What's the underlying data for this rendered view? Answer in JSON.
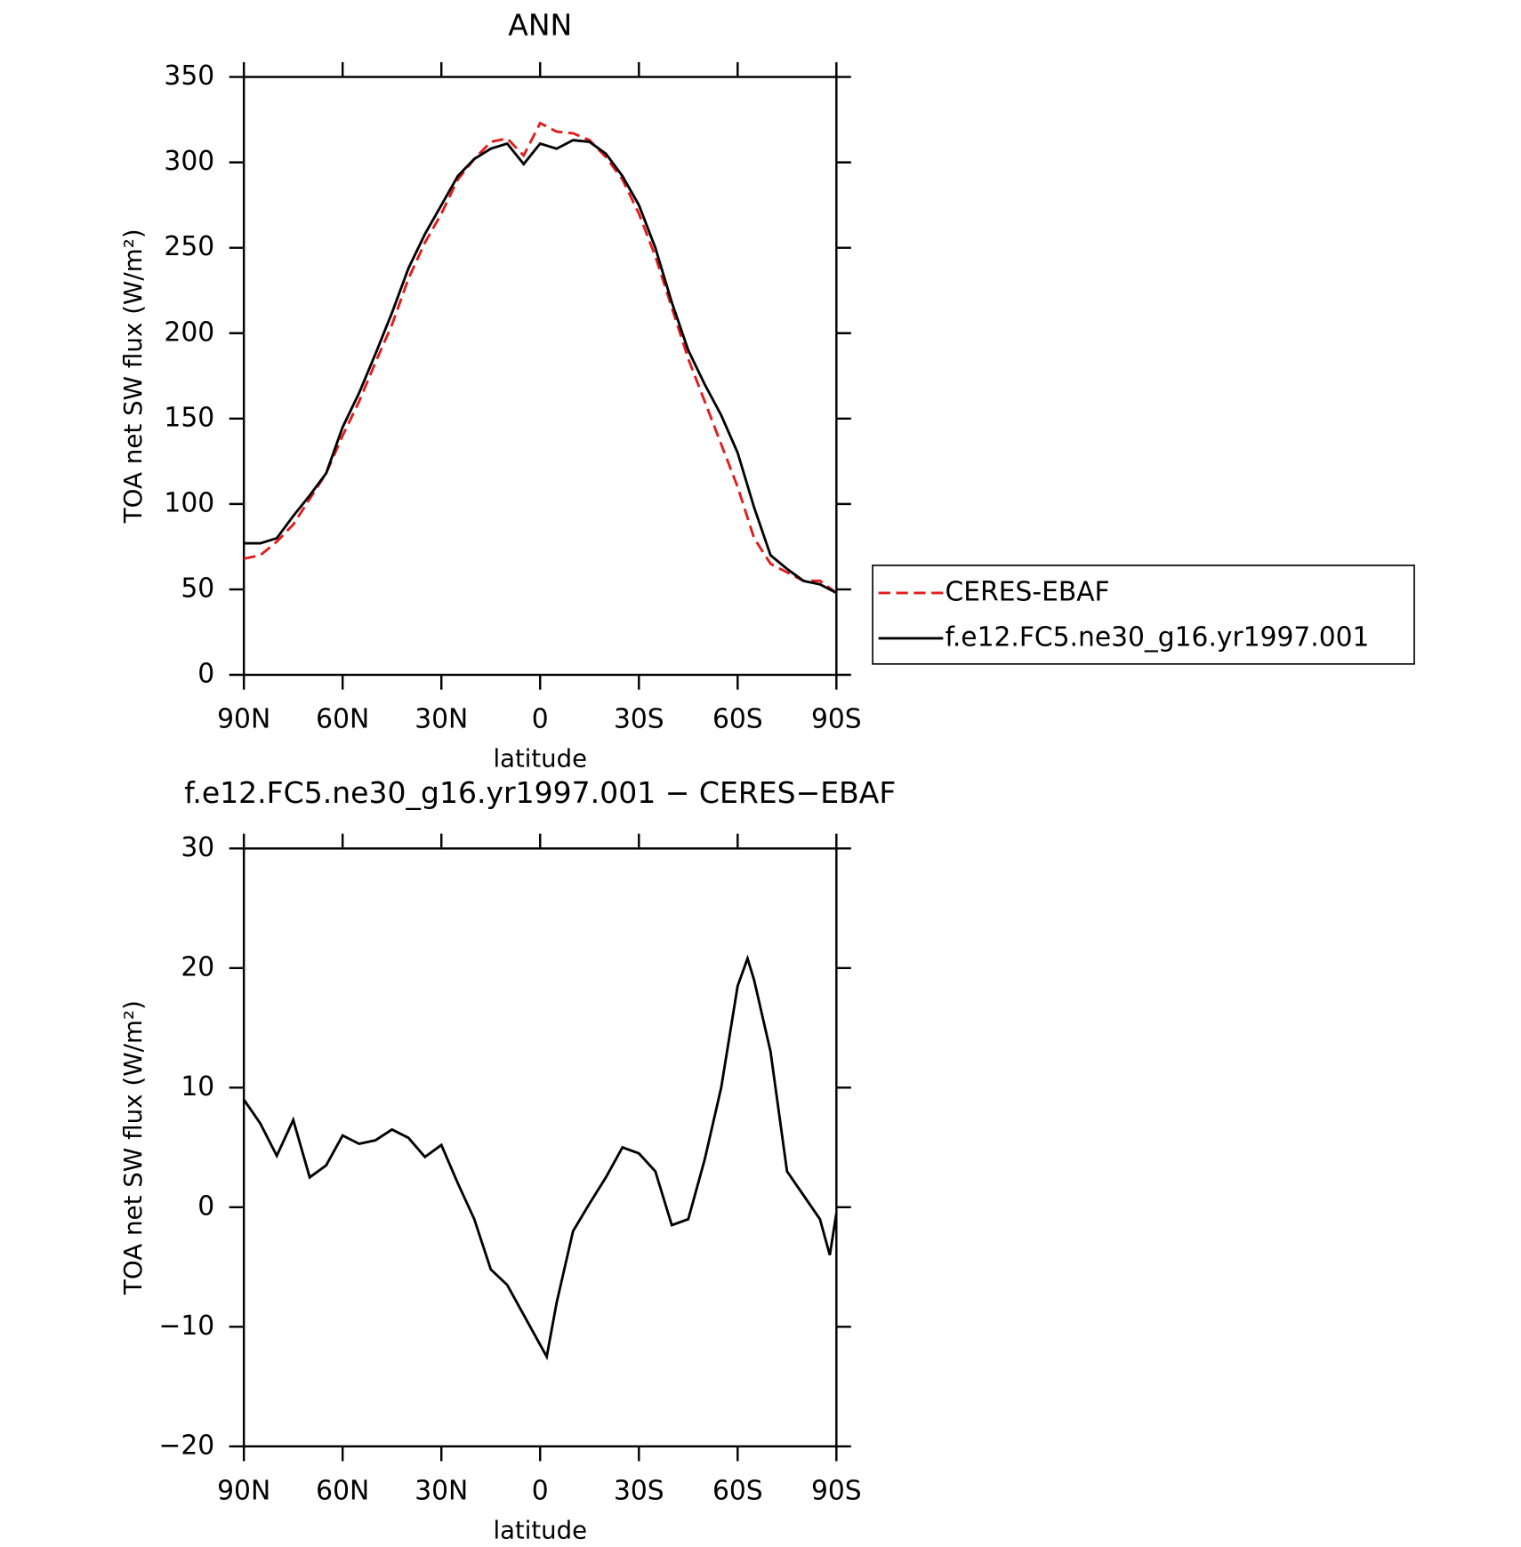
{
  "chart_data": [
    {
      "type": "line",
      "title": "ANN",
      "x_label": "latitude",
      "y_label": "TOA net SW flux (W/m²)",
      "x": [
        90,
        85,
        80,
        75,
        70,
        65,
        60,
        55,
        50,
        45,
        40,
        35,
        30,
        25,
        20,
        15,
        10,
        5,
        0,
        -5,
        -10,
        -15,
        -20,
        -25,
        -30,
        -35,
        -40,
        -45,
        -50,
        -55,
        -60,
        -65,
        -70,
        -75,
        -80,
        -85,
        -90
      ],
      "xlim": [
        90,
        -90
      ],
      "xticks": [
        {
          "value": 90,
          "label": "90N"
        },
        {
          "value": 60,
          "label": "60N"
        },
        {
          "value": 30,
          "label": "30N"
        },
        0,
        {
          "value": -30,
          "label": "30S"
        },
        {
          "value": -60,
          "label": "60S"
        },
        {
          "value": -90,
          "label": "90S"
        }
      ],
      "ylim": [
        0,
        350
      ],
      "yticks": [
        0,
        50,
        100,
        150,
        200,
        250,
        300,
        350
      ],
      "legend": "right",
      "series": [
        {
          "name": "CERES-EBAF",
          "color": "#e41a1c",
          "dash": true,
          "values": [
            68,
            70,
            78,
            88,
            103,
            118,
            140,
            160,
            183,
            205,
            232,
            253,
            270,
            290,
            302,
            312,
            314,
            304,
            323,
            318,
            317,
            313,
            303,
            290,
            270,
            245,
            215,
            185,
            160,
            135,
            110,
            80,
            65,
            60,
            55,
            55,
            48
          ]
        },
        {
          "name": "f.e12.FC5.ne30_g16.yr1997.001",
          "color": "#000000",
          "values": [
            77,
            77,
            80,
            93,
            105,
            118,
            145,
            165,
            188,
            212,
            238,
            258,
            275,
            292,
            302,
            308,
            311,
            299,
            311,
            308,
            313,
            312,
            305,
            292,
            275,
            250,
            218,
            190,
            170,
            152,
            130,
            98,
            70,
            62,
            55,
            53,
            48
          ]
        }
      ]
    },
    {
      "type": "line",
      "title": "f.e12.FC5.ne30_g16.yr1997.001 − CERES−EBAF",
      "x_label": "latitude",
      "y_label": "TOA net SW flux (W/m²)",
      "x": [
        90,
        85,
        80,
        75,
        70,
        65,
        60,
        55,
        50,
        45,
        40,
        35,
        30,
        25,
        20,
        15,
        10,
        5,
        0,
        -2,
        -5,
        -10,
        -15,
        -20,
        -25,
        -30,
        -35,
        -40,
        -45,
        -50,
        -55,
        -60,
        -63,
        -65,
        -70,
        -75,
        -80,
        -85,
        -88,
        -90
      ],
      "xlim": [
        90,
        -90
      ],
      "xticks": [
        {
          "value": 90,
          "label": "90N"
        },
        {
          "value": 60,
          "label": "60N"
        },
        {
          "value": 30,
          "label": "30N"
        },
        0,
        {
          "value": -30,
          "label": "30S"
        },
        {
          "value": -60,
          "label": "60S"
        },
        {
          "value": -90,
          "label": "90S"
        }
      ],
      "ylim": [
        -20,
        30
      ],
      "yticks": [
        {
          "value": -20,
          "label": "−20"
        },
        {
          "value": -10,
          "label": "−10"
        },
        0,
        10,
        20,
        30
      ],
      "series": [
        {
          "color": "#000000",
          "values": [
            9,
            7,
            4.3,
            7.3,
            2.5,
            3.5,
            6,
            5.3,
            5.6,
            6.5,
            5.8,
            4.2,
            5.2,
            2,
            -1,
            -5.2,
            -6.5,
            -9,
            -11.5,
            -12.5,
            -8,
            -2,
            0.3,
            2.5,
            5,
            4.5,
            3,
            -1.5,
            -1,
            4,
            10,
            18.5,
            20.8,
            19,
            13,
            3,
            1,
            -1,
            -4,
            -0.5
          ]
        }
      ]
    }
  ]
}
